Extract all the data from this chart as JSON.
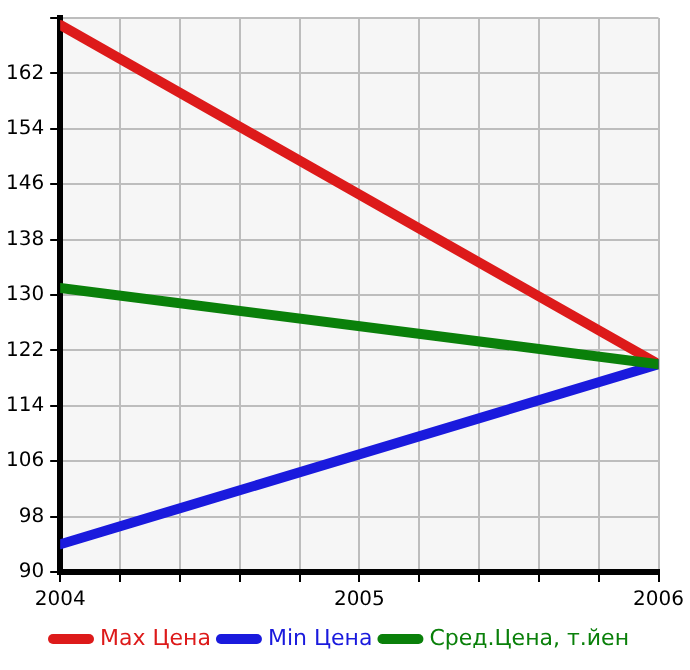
{
  "chart_data": {
    "type": "line",
    "x": [
      2004,
      2006
    ],
    "series": [
      {
        "name": "Max Цена",
        "color": "#dd1a1a",
        "values": [
          169,
          120
        ]
      },
      {
        "name": "Min Цена",
        "color": "#1a1add",
        "values": [
          94,
          120
        ]
      },
      {
        "name": "Сред.Цена, т.йен",
        "color": "#0a800a",
        "values": [
          131,
          120
        ]
      }
    ],
    "xlim": [
      2004,
      2006
    ],
    "xticks": [
      2004,
      {
        "value": 2004.2,
        "label": null
      },
      {
        "value": 2004.4,
        "label": null
      },
      {
        "value": 2004.6,
        "label": null
      },
      {
        "value": 2004.8,
        "label": null
      },
      2005,
      {
        "value": 2005.2,
        "label": null
      },
      {
        "value": 2005.4,
        "label": null
      },
      {
        "value": 2005.6,
        "label": null
      },
      {
        "value": 2005.8,
        "label": null
      },
      2006
    ],
    "ylim": [
      90,
      170
    ],
    "yticks": [
      90,
      98,
      106,
      114,
      122,
      130,
      138,
      146,
      154,
      162,
      {
        "value": 170,
        "label": null
      }
    ],
    "grid": true,
    "legend": "bottom",
    "marker": "none",
    "line_style": "solid"
  }
}
